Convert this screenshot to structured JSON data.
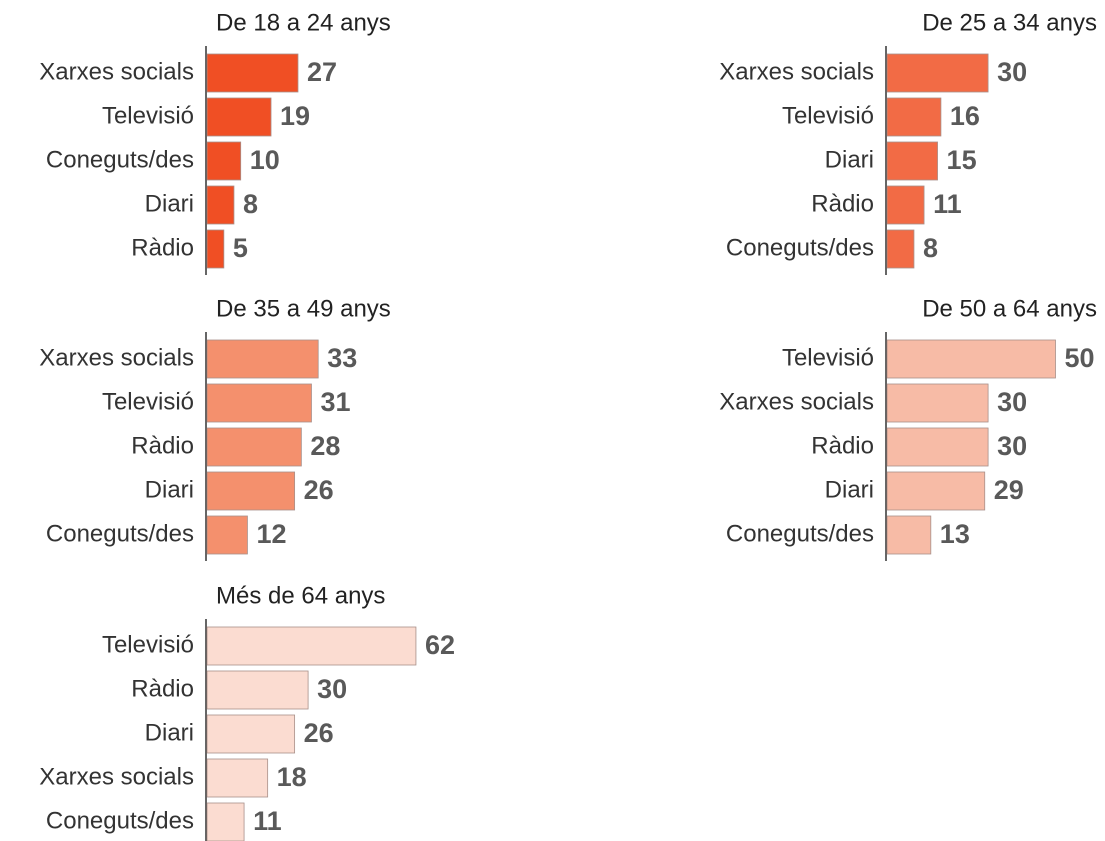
{
  "chart_data": [
    {
      "type": "bar",
      "title": "De 18 a 24 anys",
      "categories": [
        "Xarxes socials",
        "Televisió",
        "Coneguts/des",
        "Diari",
        "Ràdio"
      ],
      "values": [
        27,
        19,
        10,
        8,
        5
      ],
      "color": "#f04f24"
    },
    {
      "type": "bar",
      "title": "De 25 a 34 anys",
      "categories": [
        "Xarxes socials",
        "Televisió",
        "Diari",
        "Ràdio",
        "Coneguts/des"
      ],
      "values": [
        30,
        16,
        15,
        11,
        8
      ],
      "color": "#f26b45"
    },
    {
      "type": "bar",
      "title": "De 35 a 49 anys",
      "categories": [
        "Xarxes socials",
        "Televisió",
        "Ràdio",
        "Diari",
        "Coneguts/des"
      ],
      "values": [
        33,
        31,
        28,
        26,
        12
      ],
      "color": "#f4906d"
    },
    {
      "type": "bar",
      "title": "De 50 a 64 anys",
      "categories": [
        "Televisió",
        "Xarxes socials",
        "Ràdio",
        "Diari",
        "Coneguts/des"
      ],
      "values": [
        50,
        30,
        30,
        29,
        13
      ],
      "color": "#f7bba6"
    },
    {
      "type": "bar",
      "title": "Més de 64 anys",
      "categories": [
        "Televisió",
        "Ràdio",
        "Diari",
        "Xarxes socials",
        "Coneguts/des"
      ],
      "values": [
        62,
        30,
        26,
        18,
        11
      ],
      "color": "#fbdcd1"
    }
  ]
}
